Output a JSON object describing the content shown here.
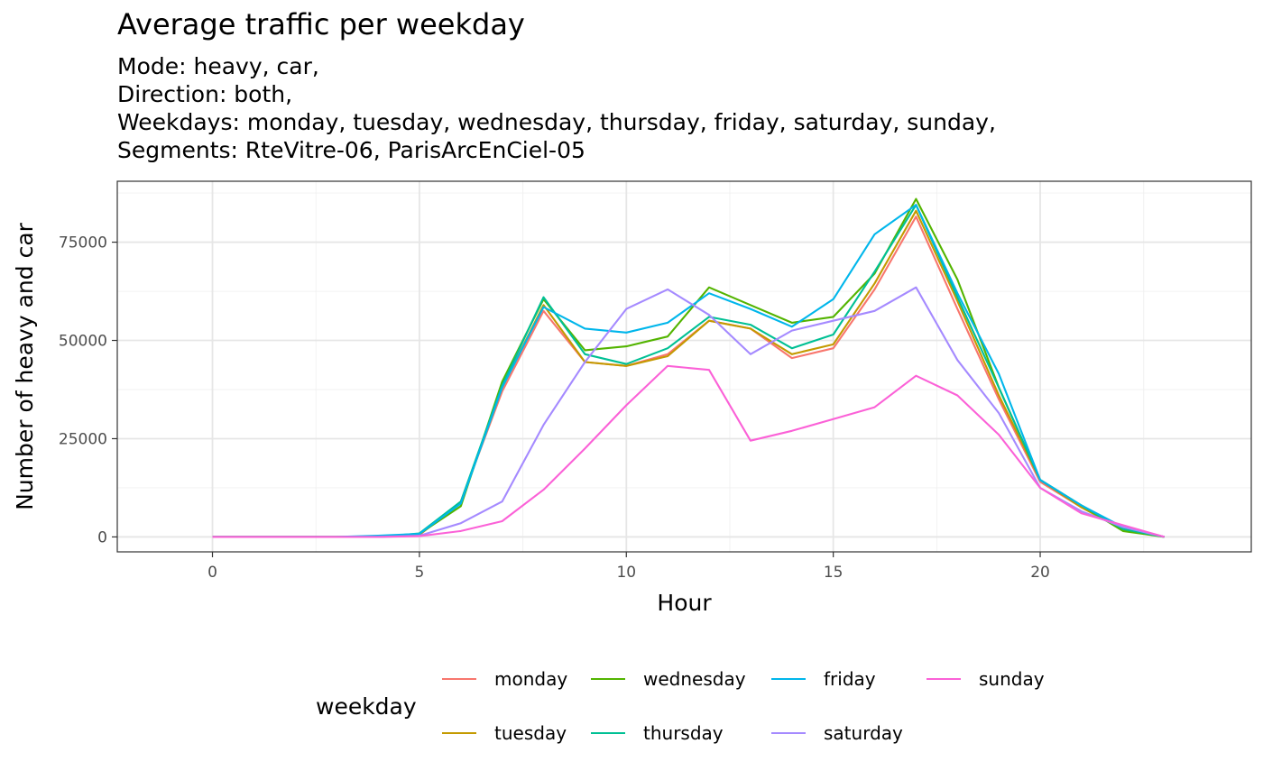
{
  "title": "Average traffic per weekday",
  "subtitle": [
    "Mode: heavy, car,",
    "Direction: both,",
    "Weekdays: monday, tuesday, wednesday, thursday, friday, saturday, sunday,",
    "Segments: RteVitre-06, ParisArcEnCiel-05"
  ],
  "chart_data": {
    "type": "line",
    "title": "Average traffic per weekday",
    "xlabel": "Hour",
    "ylabel": "Number of heavy and car",
    "xlim": [
      -2.3,
      25.1
    ],
    "ylim": [
      -3800,
      90500
    ],
    "xticks": [
      0,
      5,
      10,
      15,
      20
    ],
    "yticks": [
      0,
      25000,
      50000,
      75000
    ],
    "grid": true,
    "legend_title": "weekday",
    "legend_position": "bottom",
    "x": [
      0,
      1,
      2,
      3,
      4,
      5,
      6,
      7,
      8,
      9,
      10,
      11,
      12,
      13,
      14,
      15,
      16,
      17,
      18,
      19,
      20,
      21,
      22,
      23
    ],
    "series": [
      {
        "name": "monday",
        "color": "#F8766D",
        "values": [
          0,
          0,
          0,
          0,
          0,
          500,
          9000,
          37000,
          57500,
          44500,
          43500,
          46500,
          55000,
          53000,
          45500,
          48000,
          63000,
          81500,
          58000,
          35000,
          14000,
          7500,
          2000,
          0
        ]
      },
      {
        "name": "tuesday",
        "color": "#C49A00",
        "values": [
          0,
          0,
          0,
          0,
          0,
          600,
          8500,
          38000,
          59000,
          44500,
          43500,
          46000,
          55000,
          53000,
          46500,
          49000,
          64500,
          83000,
          60000,
          36000,
          14500,
          7500,
          1800,
          0
        ]
      },
      {
        "name": "wednesday",
        "color": "#53B400",
        "values": [
          0,
          0,
          0,
          0,
          0,
          800,
          7800,
          39500,
          60500,
          47500,
          48500,
          51000,
          63500,
          59000,
          54500,
          56000,
          67000,
          86000,
          65500,
          38000,
          14500,
          8000,
          1500,
          0
        ]
      },
      {
        "name": "thursday",
        "color": "#00C094",
        "values": [
          0,
          0,
          0,
          0,
          0,
          900,
          9000,
          38500,
          61000,
          46500,
          44000,
          48000,
          56000,
          54000,
          48000,
          51500,
          67500,
          84500,
          61000,
          38000,
          14500,
          8000,
          2000,
          0
        ]
      },
      {
        "name": "friday",
        "color": "#00B6EB",
        "values": [
          0,
          0,
          0,
          0,
          300,
          800,
          8500,
          38000,
          58500,
          53000,
          52000,
          54500,
          62000,
          58000,
          53500,
          60500,
          77000,
          84500,
          62000,
          41500,
          14500,
          8000,
          2500,
          0
        ]
      },
      {
        "name": "saturday",
        "color": "#A58AFF",
        "values": [
          0,
          0,
          0,
          0,
          0,
          300,
          3500,
          9000,
          28500,
          44500,
          58000,
          63000,
          56500,
          46500,
          52500,
          55000,
          57500,
          63500,
          45000,
          31500,
          12500,
          6500,
          2500,
          0
        ]
      },
      {
        "name": "sunday",
        "color": "#FB61D7",
        "values": [
          0,
          0,
          0,
          0,
          0,
          200,
          1500,
          4000,
          12000,
          22500,
          33500,
          43500,
          42500,
          24500,
          27000,
          30000,
          33000,
          41000,
          36000,
          26000,
          12500,
          6000,
          3000,
          0
        ]
      }
    ]
  }
}
